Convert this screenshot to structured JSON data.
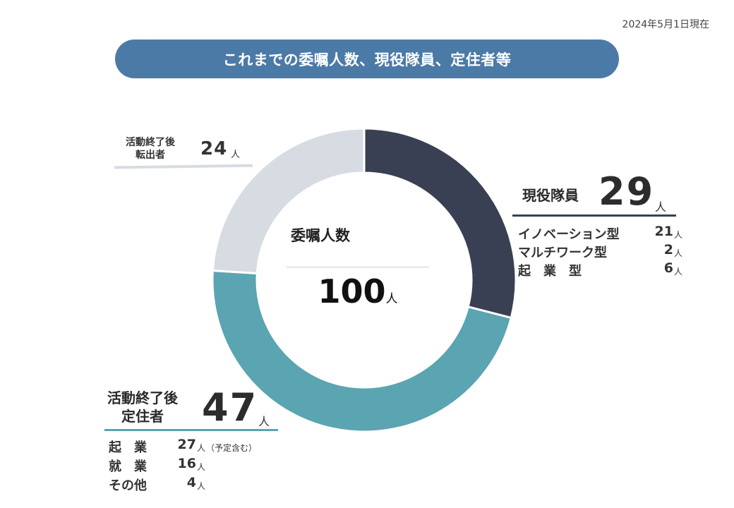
{
  "date_note": "2024年5月1日現在",
  "banner_title": "これまでの委嘱人数、現役隊員、定住者等",
  "center": {
    "title": "委嘱人数",
    "total": "100",
    "unit": "人"
  },
  "groups": {
    "active": {
      "title": "現役隊員",
      "count": "29",
      "unit": "人",
      "items": [
        {
          "label": "イノベーション型",
          "value": "21",
          "unit": "人"
        },
        {
          "label": "マルチワーク型",
          "value": "2",
          "unit": "人"
        },
        {
          "label": "起　業　型",
          "value": "6",
          "unit": "人"
        }
      ]
    },
    "settled": {
      "title_line1": "活動終了後",
      "title_line2": "定住者",
      "count": "47",
      "unit": "人",
      "items": [
        {
          "label": "起　業",
          "value": "27",
          "unit": "人",
          "note": "（予定含む）"
        },
        {
          "label": "就　業",
          "value": "16",
          "unit": "人"
        },
        {
          "label": "その他",
          "value": "4",
          "unit": "人"
        }
      ]
    },
    "moved": {
      "title_line1": "活動終了後",
      "title_line2": "転出者",
      "count": "24",
      "unit": "人"
    }
  },
  "colors": {
    "active": "#3a4053",
    "settled": "#5ba4b1",
    "moved": "#d7dce3",
    "banner": "#4c7aa7"
  },
  "chart_data": {
    "type": "pie",
    "title": "委嘱人数",
    "total": 100,
    "slices": [
      {
        "label": "現役隊員",
        "value": 29,
        "color": "#3a4053"
      },
      {
        "label": "活動終了後定住者",
        "value": 47,
        "color": "#5ba4b1"
      },
      {
        "label": "活動終了後転出者",
        "value": 24,
        "color": "#d7dce3"
      }
    ]
  }
}
